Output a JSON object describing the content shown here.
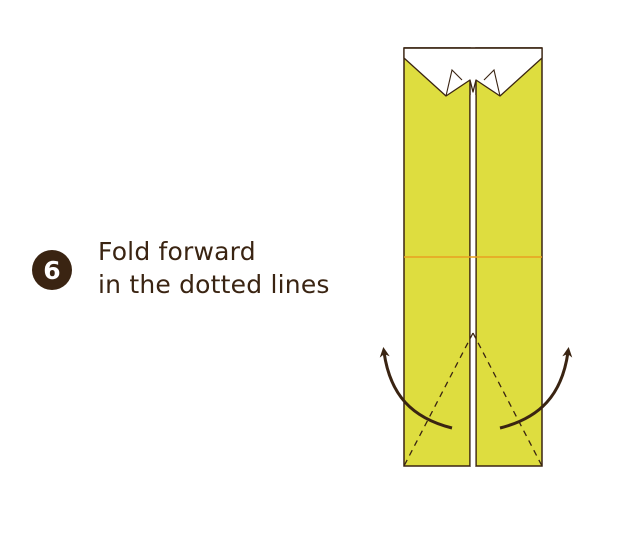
{
  "step": {
    "number": "6"
  },
  "instruction": {
    "line1": "Fold forward",
    "line2": "in the dotted lines"
  },
  "colors": {
    "paper": "#dedd3f",
    "paper_edge": "#3a2412",
    "collar": "#ffffff",
    "crease": "#e8a020",
    "arrow": "#3a2412",
    "badge": "#3a2412",
    "text": "#3a2412"
  },
  "icons": {
    "fold_arrow_left": "curved-arrow-up-left",
    "fold_arrow_right": "curved-arrow-up-right"
  }
}
